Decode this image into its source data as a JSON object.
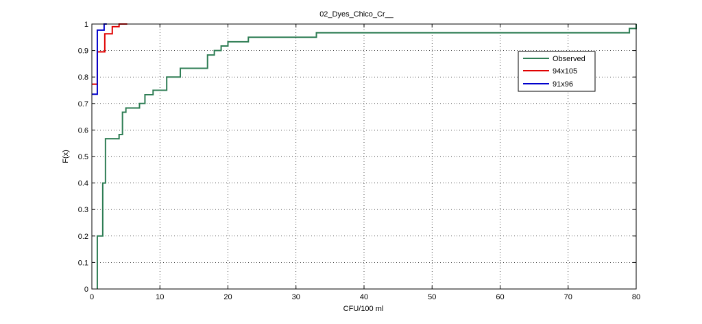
{
  "chart_data": {
    "type": "line",
    "title": "02_Dyes_Chico_Cr__",
    "xlabel": "CFU/100 ml",
    "ylabel": "F(x)",
    "xlim": [
      0,
      80
    ],
    "ylim": [
      0,
      1
    ],
    "xticks": [
      0,
      10,
      20,
      30,
      40,
      50,
      60,
      70,
      80
    ],
    "yticks": [
      0,
      0.1,
      0.2,
      0.3,
      0.4,
      0.5,
      0.6,
      0.7,
      0.8,
      0.9,
      1
    ],
    "xtick_labels": [
      "0",
      "10",
      "20",
      "30",
      "40",
      "50",
      "60",
      "70",
      "80"
    ],
    "ytick_labels": [
      "0",
      "0.1",
      "0.2",
      "0.3",
      "0.4",
      "0.5",
      "0.6",
      "0.7",
      "0.8",
      "0.9",
      "1"
    ],
    "grid": true,
    "legend_position": "top-right",
    "series": [
      {
        "name": "Observed",
        "color": "#2e7d54",
        "step": true,
        "points": [
          [
            0.8,
            0
          ],
          [
            0.8,
            0.2
          ],
          [
            1.6,
            0.2
          ],
          [
            1.6,
            0.4
          ],
          [
            2.0,
            0.4
          ],
          [
            2.0,
            0.567
          ],
          [
            4.0,
            0.567
          ],
          [
            4.0,
            0.583
          ],
          [
            4.5,
            0.583
          ],
          [
            4.5,
            0.667
          ],
          [
            5.0,
            0.667
          ],
          [
            5.0,
            0.683
          ],
          [
            7.0,
            0.683
          ],
          [
            7.0,
            0.7
          ],
          [
            7.8,
            0.7
          ],
          [
            7.8,
            0.733
          ],
          [
            9.0,
            0.733
          ],
          [
            9.0,
            0.75
          ],
          [
            11.0,
            0.75
          ],
          [
            11.0,
            0.8
          ],
          [
            13.0,
            0.8
          ],
          [
            13.0,
            0.833
          ],
          [
            17.0,
            0.833
          ],
          [
            17.0,
            0.883
          ],
          [
            18.0,
            0.883
          ],
          [
            18.0,
            0.9
          ],
          [
            19.0,
            0.9
          ],
          [
            19.0,
            0.917
          ],
          [
            20.0,
            0.917
          ],
          [
            20.0,
            0.933
          ],
          [
            23.0,
            0.933
          ],
          [
            23.0,
            0.95
          ],
          [
            33.0,
            0.95
          ],
          [
            33.0,
            0.967
          ],
          [
            79.0,
            0.967
          ],
          [
            79.0,
            0.983
          ],
          [
            80.0,
            0.983
          ],
          [
            80.0,
            1.0
          ]
        ]
      },
      {
        "name": "94x105",
        "color": "#e00000",
        "step": true,
        "points": [
          [
            0,
            0.773
          ],
          [
            0.8,
            0.773
          ],
          [
            0.8,
            0.895
          ],
          [
            1.9,
            0.895
          ],
          [
            1.9,
            0.963
          ],
          [
            3.0,
            0.963
          ],
          [
            3.0,
            0.99
          ],
          [
            4.0,
            0.99
          ],
          [
            4.0,
            1.0
          ],
          [
            5.2,
            1.0
          ]
        ]
      },
      {
        "name": "91x96",
        "color": "#0000cc",
        "step": true,
        "points": [
          [
            0,
            0.735
          ],
          [
            0.8,
            0.735
          ],
          [
            0.8,
            0.977
          ],
          [
            1.8,
            0.977
          ],
          [
            1.8,
            1.0
          ],
          [
            2.2,
            1.0
          ]
        ]
      }
    ]
  }
}
